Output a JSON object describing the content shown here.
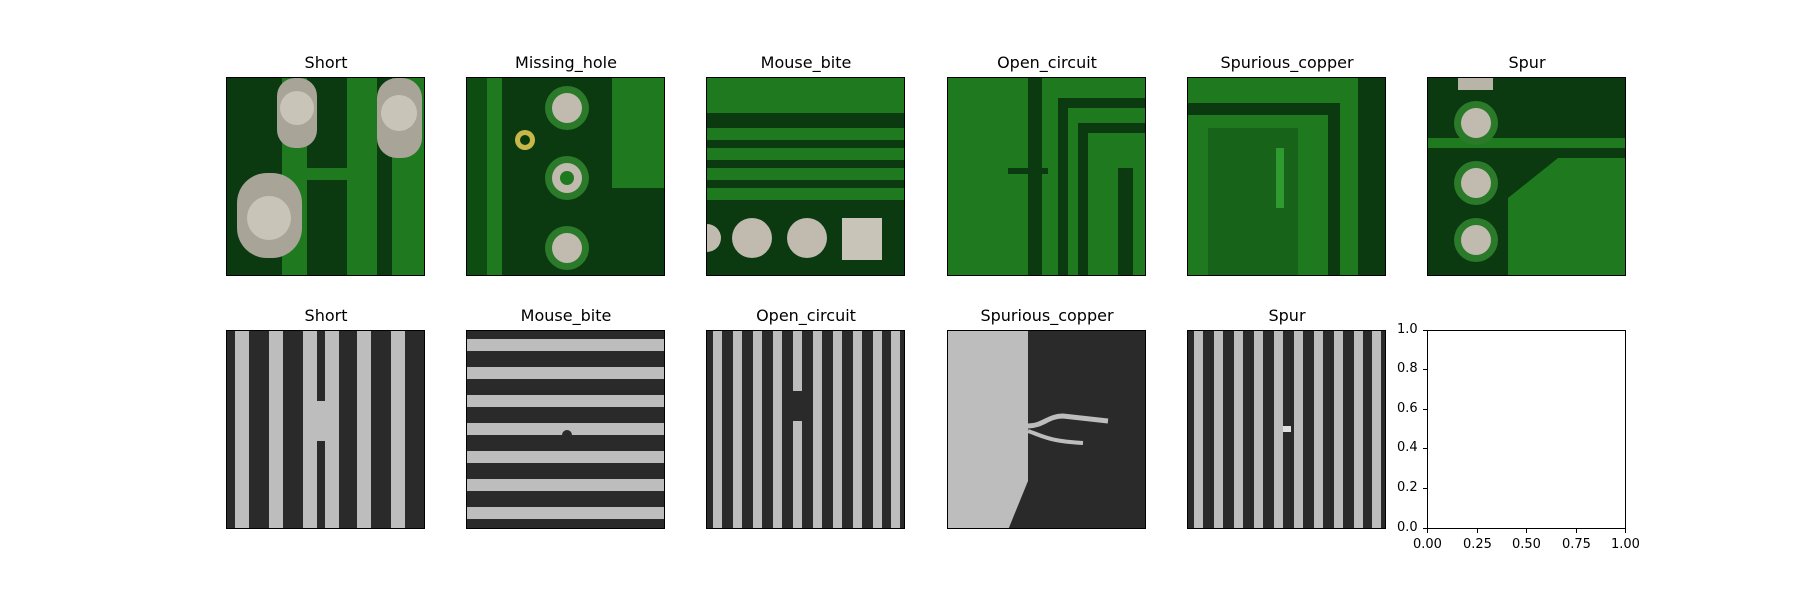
{
  "row1": {
    "titles": [
      "Short",
      "Missing_hole",
      "Mouse_bite",
      "Open_circuit",
      "Spurious_copper",
      "Spur"
    ]
  },
  "row2": {
    "titles": [
      "Short",
      "Mouse_bite",
      "Open_circuit",
      "Spurious_copper",
      "Spur"
    ]
  },
  "empty_axes": {
    "xticks": [
      "0.00",
      "0.25",
      "0.50",
      "0.75",
      "1.00"
    ],
    "yticks": [
      "0.0",
      "0.2",
      "0.4",
      "0.6",
      "0.8",
      "1.0"
    ]
  },
  "colors": {
    "pcb_dark": "#0b3a10",
    "pcb_green": "#1f7a1f",
    "pad": "#b9b4a8",
    "gray_bg": "#2a2a2a",
    "gray_line": "#bdbdbd"
  }
}
